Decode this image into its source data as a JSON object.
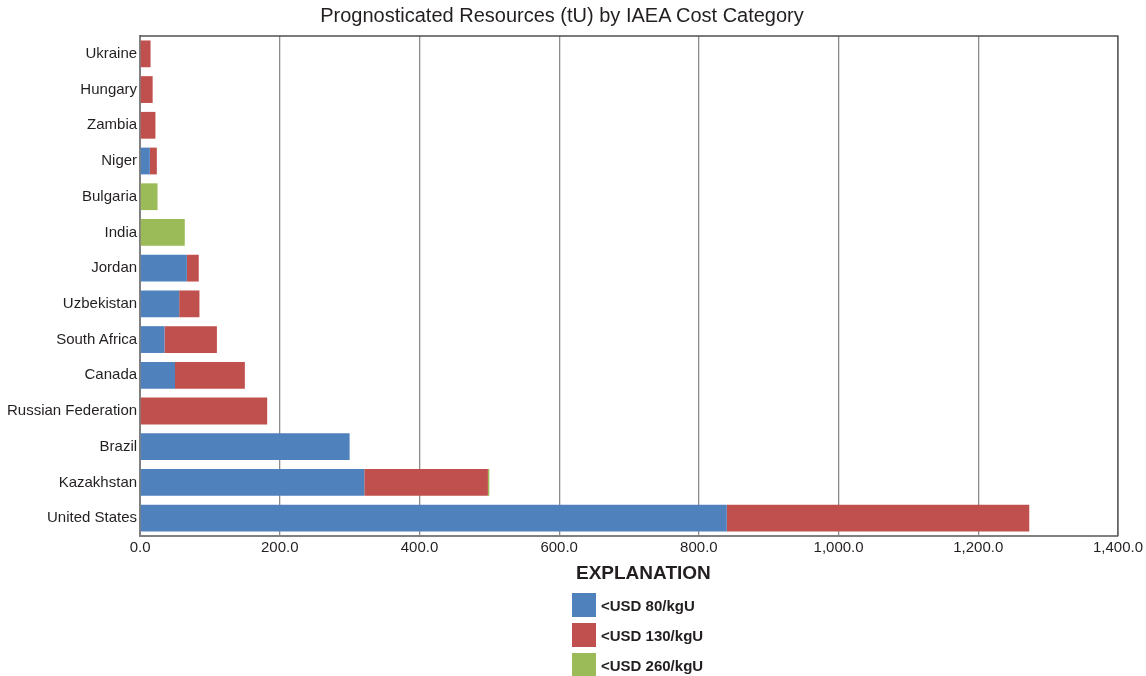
{
  "chart_data": {
    "type": "bar",
    "orientation": "horizontal",
    "stacked": true,
    "title": "Prognosticated Resources (tU) by IAEA Cost Category",
    "legend_title": "EXPLANATION",
    "legend": "bottom",
    "grid": "x",
    "categories": [
      "Ukraine",
      "Hungary",
      "Zambia",
      "Niger",
      "Bulgaria",
      "India",
      "Jordan",
      "Uzbekistan",
      "South Africa",
      "Canada",
      "Russian Federation",
      "Brazil",
      "Kazakhstan",
      "United States"
    ],
    "series": [
      {
        "name": "<USD 80/kgU",
        "color": "#4f81bd",
        "values": [
          null,
          null,
          null,
          14,
          null,
          null,
          67,
          56,
          35,
          50,
          null,
          300,
          321,
          840
        ]
      },
      {
        "name": "<USD 130/kgU",
        "color": "#c0504d",
        "values": [
          15,
          18,
          22,
          10,
          null,
          null,
          17,
          29,
          75,
          100,
          182,
          null,
          177,
          433
        ]
      },
      {
        "name": "<USD 260/kgU",
        "color": "#9bbb59",
        "values": [
          null,
          null,
          null,
          null,
          25,
          64,
          null,
          null,
          null,
          null,
          null,
          null,
          2,
          null
        ]
      }
    ],
    "xlim": [
      0,
      1400
    ],
    "xticks": [
      {
        "value": 0,
        "label": "0.0"
      },
      {
        "value": 200,
        "label": "200.0"
      },
      {
        "value": 400,
        "label": "400.0"
      },
      {
        "value": 600,
        "label": "600.0"
      },
      {
        "value": 800,
        "label": "800.0"
      },
      {
        "value": 1000,
        "label": "1,000.0"
      },
      {
        "value": 1200,
        "label": "1,200.0"
      },
      {
        "value": 1400,
        "label": "1,400.0"
      }
    ]
  }
}
